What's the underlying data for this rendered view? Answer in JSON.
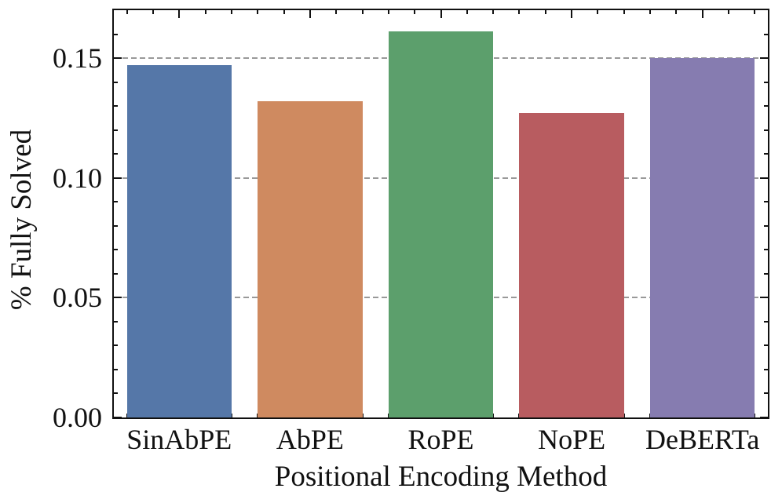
{
  "figure": {
    "background_color": "#ffffff",
    "frame_color": "#111111",
    "grid_color": "#999999",
    "grid_style": "dashed"
  },
  "chart_data": {
    "type": "bar",
    "title": "",
    "xlabel": "Positional Encoding Method",
    "ylabel": "% Fully Solved",
    "categories": [
      "SinAbPE",
      "AbPE",
      "RoPE",
      "NoPE",
      "DeBERTa"
    ],
    "values": [
      0.147,
      0.132,
      0.161,
      0.127,
      0.15
    ],
    "bar_colors": [
      "#5577A8",
      "#CF8A60",
      "#5C9F6C",
      "#B85C60",
      "#867CB0"
    ],
    "ylim": [
      0,
      0.17
    ],
    "yticks": [
      0,
      0.05,
      0.1,
      0.15
    ],
    "ytick_labels": [
      "0.00",
      "0.05",
      "0.10",
      "0.15"
    ],
    "y_minor_tick_step": 0.01,
    "x_minor_ticks_per_unit": 5,
    "grid": "horizontal dashed lines at 0.05, 0.10, 0.15 drawn below bars",
    "legend": "none",
    "tick_direction": "in",
    "ticks_on_all_sides": true
  }
}
